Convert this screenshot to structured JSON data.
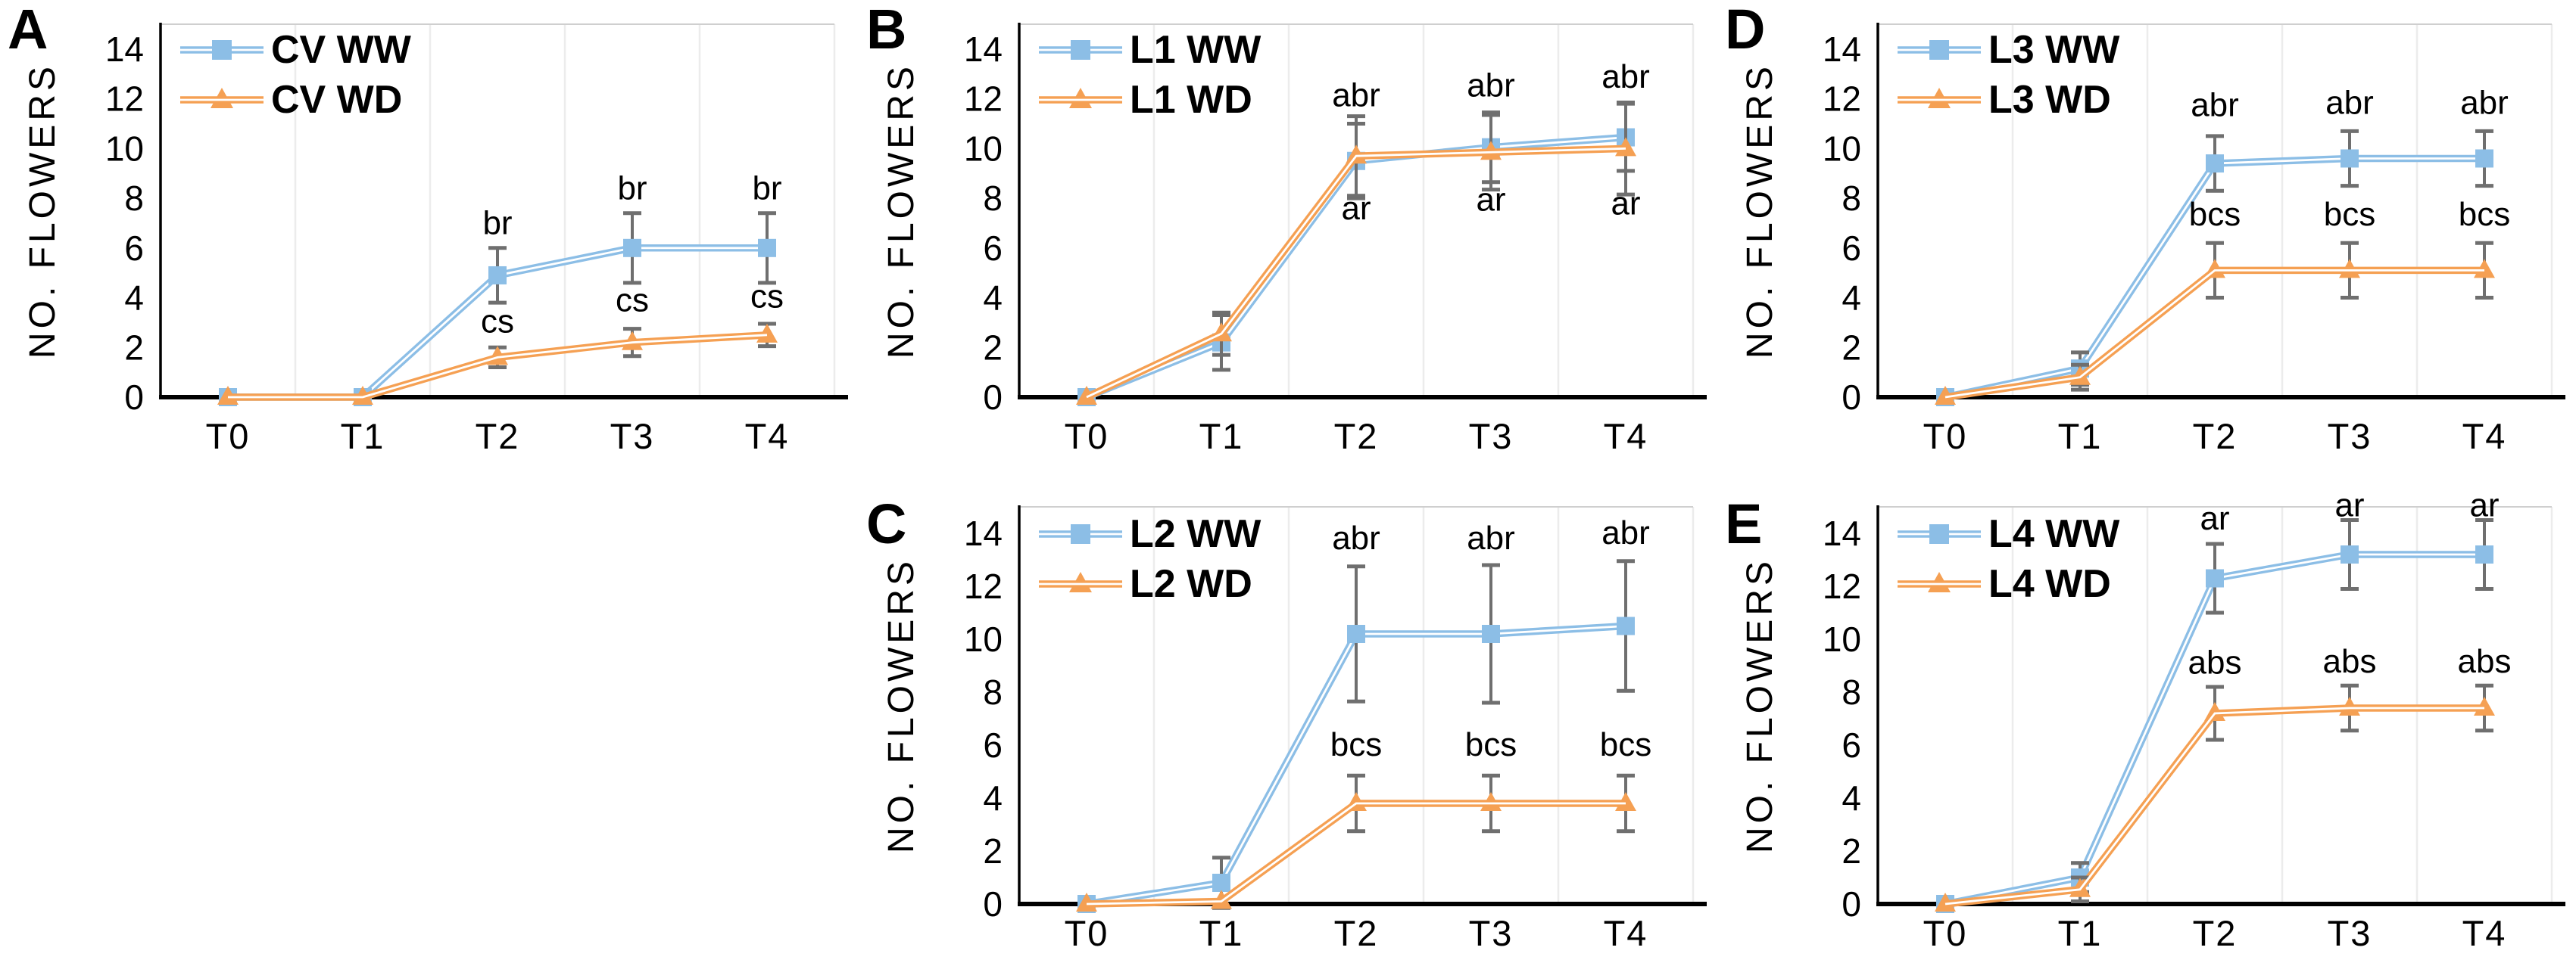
{
  "figure": {
    "y_axis_label": "NO. FLOWERS",
    "x_categories": [
      "T0",
      "T1",
      "T2",
      "T3",
      "T4"
    ],
    "colors": {
      "ww_series": "#8CBEE6",
      "wd_series": "#F5A053",
      "error_bars": "#6F6F6F",
      "gridlines": "#ECECEC",
      "plot_border": "#CFCFCF",
      "axis": "#000000",
      "annotation_text": "#000000"
    }
  },
  "chart_data": [
    {
      "panel_label": "A",
      "type": "line",
      "x": [
        "T0",
        "T1",
        "T2",
        "T3",
        "T4"
      ],
      "xlabel": "",
      "ylabel": "NO. FLOWERS",
      "ylim": [
        0,
        15
      ],
      "yticks": [
        0,
        2,
        4,
        6,
        8,
        10,
        12,
        14
      ],
      "grid": "vertical",
      "legend_position": "top-left",
      "series": [
        {
          "name": "CV WW",
          "marker": "square",
          "color": "#8CBEE6",
          "values": [
            0,
            0,
            4.9,
            6.0,
            6.0
          ],
          "errors": [
            0,
            0,
            1.1,
            1.4,
            1.4
          ]
        },
        {
          "name": "CV WD",
          "marker": "triangle",
          "color": "#F5A053",
          "values": [
            0,
            0,
            1.6,
            2.2,
            2.5
          ],
          "errors": [
            0,
            0,
            0.4,
            0.55,
            0.45
          ]
        }
      ],
      "annotations": [
        {
          "text": "br",
          "xi": 2,
          "y": 6.55
        },
        {
          "text": "br",
          "xi": 3,
          "y": 7.95
        },
        {
          "text": "br",
          "xi": 4,
          "y": 7.95
        },
        {
          "text": "cs",
          "xi": 2,
          "y": 2.6
        },
        {
          "text": "cs",
          "xi": 3,
          "y": 3.45
        },
        {
          "text": "cs",
          "xi": 4,
          "y": 3.6
        }
      ]
    },
    {
      "panel_label": "B",
      "type": "line",
      "x": [
        "T0",
        "T1",
        "T2",
        "T3",
        "T4"
      ],
      "xlabel": "",
      "ylabel": "NO. FLOWERS",
      "ylim": [
        0,
        15
      ],
      "yticks": [
        0,
        2,
        4,
        6,
        8,
        10,
        12,
        14
      ],
      "grid": "vertical",
      "legend_position": "top-left",
      "series": [
        {
          "name": "L1 WW",
          "marker": "square",
          "color": "#8CBEE6",
          "values": [
            0,
            2.2,
            9.5,
            10.05,
            10.45
          ],
          "errors": [
            0,
            1.1,
            1.5,
            1.4,
            1.35
          ]
        },
        {
          "name": "L1 WD",
          "marker": "triangle",
          "color": "#F5A053",
          "values": [
            0,
            2.55,
            9.7,
            9.85,
            10.0
          ],
          "errors": [
            0,
            0.85,
            1.6,
            1.5,
            1.85
          ]
        }
      ],
      "annotations": [
        {
          "text": "abr",
          "xi": 2,
          "y": 11.7
        },
        {
          "text": "abr",
          "xi": 3,
          "y": 12.1
        },
        {
          "text": "abr",
          "xi": 4,
          "y": 12.45
        },
        {
          "text": "ar",
          "xi": 2,
          "y": 7.15
        },
        {
          "text": "ar",
          "xi": 3,
          "y": 7.5
        },
        {
          "text": "ar",
          "xi": 4,
          "y": 7.35
        }
      ]
    },
    {
      "panel_label": "C",
      "type": "line",
      "x": [
        "T0",
        "T1",
        "T2",
        "T3",
        "T4"
      ],
      "xlabel": "",
      "ylabel": "NO. FLOWERS",
      "ylim": [
        0,
        15
      ],
      "yticks": [
        0,
        2,
        4,
        6,
        8,
        10,
        12,
        14
      ],
      "grid": "vertical",
      "legend_position": "top-left",
      "series": [
        {
          "name": "L2 WW",
          "marker": "square",
          "color": "#8CBEE6",
          "values": [
            0,
            0.8,
            10.2,
            10.2,
            10.5
          ],
          "errors": [
            0,
            0.95,
            2.55,
            2.6,
            2.45
          ]
        },
        {
          "name": "L2 WD",
          "marker": "triangle",
          "color": "#F5A053",
          "values": [
            0,
            0.1,
            3.8,
            3.8,
            3.8
          ],
          "errors": [
            0,
            0,
            1.05,
            1.05,
            1.05
          ]
        }
      ],
      "annotations": [
        {
          "text": "abr",
          "xi": 2,
          "y": 13.4
        },
        {
          "text": "abr",
          "xi": 3,
          "y": 13.4
        },
        {
          "text": "abr",
          "xi": 4,
          "y": 13.6
        },
        {
          "text": "bcs",
          "xi": 2,
          "y": 5.6
        },
        {
          "text": "bcs",
          "xi": 3,
          "y": 5.6
        },
        {
          "text": "bcs",
          "xi": 4,
          "y": 5.6
        }
      ]
    },
    {
      "panel_label": "D",
      "type": "line",
      "x": [
        "T0",
        "T1",
        "T2",
        "T3",
        "T4"
      ],
      "xlabel": "",
      "ylabel": "NO. FLOWERS",
      "ylim": [
        0,
        15
      ],
      "yticks": [
        0,
        2,
        4,
        6,
        8,
        10,
        12,
        14
      ],
      "grid": "vertical",
      "legend_position": "top-left",
      "series": [
        {
          "name": "L3 WW",
          "marker": "square",
          "color": "#8CBEE6",
          "values": [
            0,
            1.15,
            9.4,
            9.6,
            9.6
          ],
          "errors": [
            0,
            0.65,
            1.1,
            1.1,
            1.1
          ]
        },
        {
          "name": "L3 WD",
          "marker": "triangle",
          "color": "#F5A053",
          "values": [
            0,
            0.8,
            5.1,
            5.1,
            5.1
          ],
          "errors": [
            0,
            0.5,
            1.1,
            1.1,
            1.1
          ]
        }
      ],
      "annotations": [
        {
          "text": "abr",
          "xi": 2,
          "y": 11.3
        },
        {
          "text": "abr",
          "xi": 3,
          "y": 11.4
        },
        {
          "text": "abr",
          "xi": 4,
          "y": 11.4
        },
        {
          "text": "bcs",
          "xi": 2,
          "y": 6.9
        },
        {
          "text": "bcs",
          "xi": 3,
          "y": 6.9
        },
        {
          "text": "bcs",
          "xi": 4,
          "y": 6.9
        }
      ]
    },
    {
      "panel_label": "E",
      "type": "line",
      "x": [
        "T0",
        "T1",
        "T2",
        "T3",
        "T4"
      ],
      "xlabel": "",
      "ylabel": "NO. FLOWERS",
      "ylim": [
        0,
        15
      ],
      "yticks": [
        0,
        2,
        4,
        6,
        8,
        10,
        12,
        14
      ],
      "grid": "vertical",
      "legend_position": "top-left",
      "series": [
        {
          "name": "L4 WW",
          "marker": "square",
          "color": "#8CBEE6",
          "values": [
            0,
            1.0,
            12.3,
            13.2,
            13.2
          ],
          "errors": [
            0,
            0.55,
            1.3,
            1.3,
            1.3
          ]
        },
        {
          "name": "L4 WD",
          "marker": "triangle",
          "color": "#F5A053",
          "values": [
            0,
            0.55,
            7.2,
            7.4,
            7.4
          ],
          "errors": [
            0,
            0.45,
            1.0,
            0.85,
            0.85
          ]
        }
      ],
      "annotations": [
        {
          "text": "ar",
          "xi": 2,
          "y": 14.15
        },
        {
          "text": "ar",
          "xi": 3,
          "y": 14.65
        },
        {
          "text": "ar",
          "xi": 4,
          "y": 14.65
        },
        {
          "text": "abs",
          "xi": 2,
          "y": 8.7
        },
        {
          "text": "abs",
          "xi": 3,
          "y": 8.75
        },
        {
          "text": "abs",
          "xi": 4,
          "y": 8.75
        }
      ]
    }
  ]
}
